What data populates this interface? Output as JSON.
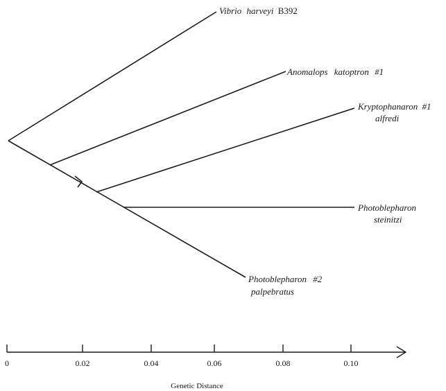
{
  "tree": {
    "taxa": [
      {
        "genus": "Vibrio",
        "species": "harveyi",
        "strain": "B392"
      },
      {
        "genus": "Anomalops",
        "species": "katoptron",
        "strain": "#1"
      },
      {
        "genus": "Kryptophanaron",
        "species": "alfredi",
        "strain": "#1"
      },
      {
        "genus": "Photoblepharon",
        "species": "steinitzi",
        "strain": ""
      },
      {
        "genus": "Photoblepharon",
        "species": "palpebratus",
        "strain": "#2"
      }
    ]
  },
  "axis": {
    "title": "Genetic Distance",
    "ticks": [
      "0",
      "0.02",
      "0.04",
      "0.06",
      "0.08",
      "0.10"
    ],
    "range": [
      0,
      0.11
    ]
  },
  "colors": {
    "ink": "#1a1a1a",
    "background": "#ffffff"
  }
}
